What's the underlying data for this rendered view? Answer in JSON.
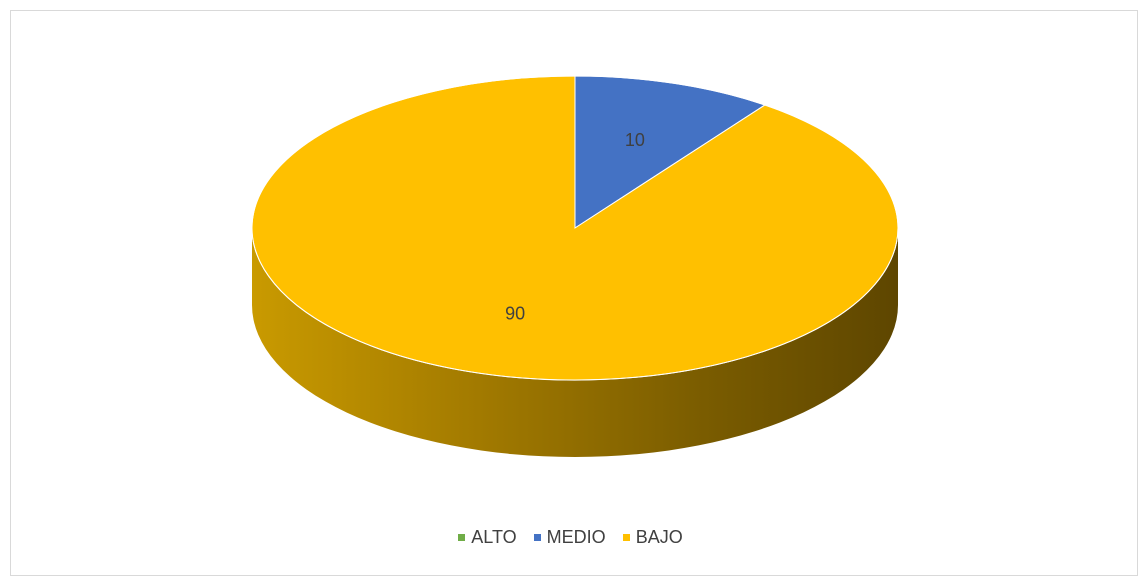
{
  "chart_data": {
    "type": "pie",
    "title": "",
    "categories": [
      "ALTO",
      "MEDIO",
      "BAJO"
    ],
    "values": [
      0,
      10,
      90
    ],
    "data_labels": [
      "",
      "10",
      "90"
    ],
    "colors": [
      "#70AD47",
      "#4472C4",
      "#FFC000"
    ],
    "legend_position": "bottom",
    "style": "3d-pie"
  }
}
